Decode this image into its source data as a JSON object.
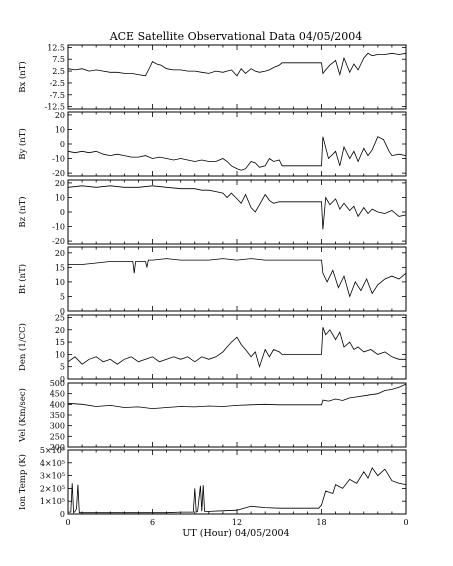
{
  "chart_data": {
    "type": "line",
    "title": "ACE Satellite Observational Data   04/05/2004",
    "xlabel": "UT (Hour)   04/05/2004",
    "x_range": [
      0,
      24
    ],
    "x_ticks": [
      "0",
      "6",
      "12",
      "18",
      "0"
    ],
    "panels": [
      {
        "id": "bx",
        "ylabel": "Bx (nT)",
        "ylim": [
          -13.5,
          13.5
        ],
        "yticks": [
          "12.5",
          "7.5",
          "2.5",
          "-2.5",
          "-7.5",
          "-12.5"
        ],
        "ytick_values": [
          12.5,
          7.5,
          2.5,
          -2.5,
          -7.5,
          -12.5
        ],
        "series": {
          "x": [
            0,
            0.5,
            1,
            1.5,
            2,
            2.5,
            3,
            3.5,
            4,
            4.5,
            5,
            5.5,
            5.8,
            6,
            6.3,
            6.6,
            7,
            7.5,
            8,
            8.5,
            9,
            9.5,
            10,
            10.5,
            11,
            11.3,
            11.6,
            12,
            12.3,
            12.6,
            13,
            13.3,
            13.6,
            14,
            14.3,
            14.6,
            15,
            15.2,
            16,
            17,
            17.8,
            18,
            18.1,
            18.3,
            18.6,
            19,
            19.3,
            19.6,
            20,
            20.3,
            20.6,
            21,
            21.3,
            21.6,
            22,
            22.5,
            23,
            23.5,
            24
          ],
          "y": [
            3.5,
            3,
            3.5,
            2.5,
            3,
            2.5,
            2,
            2,
            1.5,
            1.5,
            1,
            0.5,
            4,
            6.5,
            5.5,
            5,
            3.5,
            3,
            3,
            2.5,
            2.5,
            2,
            1.5,
            2.5,
            2,
            2.5,
            3,
            0.5,
            3.5,
            1.5,
            3.5,
            2.5,
            2,
            2.5,
            3,
            4,
            5,
            6,
            6,
            6,
            6,
            6,
            1.5,
            3,
            5,
            7,
            1,
            8,
            2,
            5.5,
            3,
            8,
            10,
            9,
            9.5,
            9.5,
            10,
            9.5,
            10
          ]
        }
      },
      {
        "id": "by",
        "ylabel": "By (nT)",
        "ylim": [
          -22,
          22
        ],
        "yticks": [
          "20",
          "10",
          "0",
          "-10",
          "-20"
        ],
        "ytick_values": [
          20,
          10,
          0,
          -10,
          -20
        ],
        "series": {
          "x": [
            0,
            0.5,
            1,
            1.5,
            2,
            2.5,
            3,
            3.5,
            4,
            4.5,
            5,
            5.5,
            6,
            6.5,
            7,
            7.5,
            8,
            8.5,
            9,
            9.5,
            10,
            10.5,
            11,
            11.3,
            11.6,
            12,
            12.3,
            12.6,
            13,
            13.3,
            13.6,
            14,
            14.3,
            14.6,
            15,
            15.2,
            16,
            17,
            17.8,
            18,
            18.1,
            18.5,
            19,
            19.3,
            19.6,
            20,
            20.3,
            20.6,
            21,
            21.3,
            21.6,
            22,
            22.4,
            22.8,
            23,
            23.5,
            24
          ],
          "y": [
            -5,
            -6,
            -5,
            -6,
            -5,
            -7,
            -8,
            -7,
            -8,
            -9,
            -9,
            -8,
            -10,
            -9,
            -10,
            -11,
            -10,
            -11,
            -12,
            -11,
            -12,
            -12,
            -10,
            -12,
            -15,
            -17,
            -18,
            -17,
            -12,
            -13,
            -16,
            -15,
            -10,
            -12,
            -11,
            -15,
            -15,
            -15,
            -15,
            -15,
            5,
            -10,
            -5,
            -15,
            -2,
            -10,
            -5,
            -12,
            -3,
            -8,
            -4,
            5,
            3,
            -5,
            -8,
            -7,
            -8
          ]
        }
      },
      {
        "id": "bz",
        "ylabel": "Bz (nT)",
        "ylim": [
          -22,
          22
        ],
        "yticks": [
          "20",
          "10",
          "0",
          "-10",
          "-20"
        ],
        "ytick_values": [
          20,
          10,
          0,
          -10,
          -20
        ],
        "series": {
          "x": [
            0,
            1,
            2,
            3,
            4,
            5,
            6,
            7,
            8,
            9,
            9.5,
            10,
            10.5,
            11,
            11.3,
            11.6,
            12,
            12.3,
            12.6,
            13,
            13.3,
            13.6,
            14,
            14.3,
            14.6,
            15,
            15.2,
            16,
            17,
            17.8,
            18,
            18.1,
            18.3,
            18.6,
            19,
            19.3,
            19.6,
            20,
            20.3,
            20.6,
            21,
            21.3,
            21.6,
            22,
            22.5,
            23,
            23.5,
            24
          ],
          "y": [
            17,
            18,
            17,
            18,
            17,
            17,
            18,
            17,
            16,
            16,
            15,
            15,
            14,
            13,
            10,
            13,
            9,
            6,
            12,
            3,
            0,
            5,
            12,
            8,
            6,
            7,
            7,
            7,
            7,
            7,
            7,
            -12,
            10,
            5,
            9,
            2,
            6,
            1,
            4,
            -3,
            3,
            -1,
            2,
            0,
            -1,
            1,
            -3,
            -2
          ]
        }
      },
      {
        "id": "bt",
        "ylabel": "Bt (nT)",
        "ylim": [
          0,
          22
        ],
        "yticks": [
          "20",
          "15",
          "10",
          "5",
          "0"
        ],
        "ytick_values": [
          20,
          15,
          10,
          5,
          0
        ],
        "series": {
          "x": [
            0,
            1,
            2,
            3,
            4,
            4.6,
            4.7,
            4.8,
            5,
            5.5,
            5.6,
            5.7,
            6,
            7,
            8,
            9,
            10,
            11,
            12,
            13,
            14,
            15,
            15.2,
            16,
            17,
            17.8,
            18,
            18.1,
            18.4,
            18.8,
            19.2,
            19.6,
            20,
            20.4,
            20.8,
            21.2,
            21.6,
            22,
            22.5,
            23,
            23.5,
            24
          ],
          "y": [
            16,
            16,
            16.5,
            17,
            17,
            17,
            13,
            17,
            17,
            17,
            15,
            17.5,
            17.5,
            18,
            17.5,
            17.5,
            17.5,
            18,
            17.5,
            18,
            17.5,
            17.5,
            17.5,
            17.5,
            17.5,
            17.5,
            17.5,
            13,
            10,
            14,
            8,
            12,
            5,
            10,
            7,
            11,
            6,
            9,
            11,
            12,
            11,
            13
          ]
        }
      },
      {
        "id": "den",
        "ylabel": "Den (1/CC)",
        "ylim": [
          0,
          26
        ],
        "yticks": [
          "25",
          "20",
          "15",
          "10",
          "5",
          "0"
        ],
        "ytick_values": [
          25,
          20,
          15,
          10,
          5,
          0
        ],
        "series": {
          "x": [
            0,
            0.5,
            1,
            1.5,
            2,
            2.5,
            3,
            3.5,
            4,
            4.5,
            5,
            5.5,
            6,
            6.5,
            7,
            7.5,
            8,
            8.5,
            9,
            9.5,
            10,
            10.5,
            11,
            11.3,
            11.6,
            12,
            12.3,
            12.6,
            13,
            13.3,
            13.6,
            14,
            14.3,
            14.6,
            15,
            15.2,
            16,
            17,
            17.8,
            18,
            18.1,
            18.3,
            18.6,
            19,
            19.3,
            19.6,
            20,
            20.3,
            20.6,
            21,
            21.5,
            22,
            22.5,
            23,
            23.5,
            24
          ],
          "y": [
            7,
            9,
            6,
            8,
            9,
            7,
            8,
            6,
            8,
            9,
            7,
            8,
            9,
            7,
            8,
            9,
            8,
            9,
            7,
            9,
            8,
            9,
            11,
            13,
            15,
            17,
            14,
            12,
            9,
            11,
            5,
            12,
            9,
            12,
            11,
            10,
            10,
            10,
            10,
            10,
            21,
            18,
            20,
            16,
            19,
            13,
            15,
            12,
            13,
            11,
            12,
            10,
            11,
            9,
            8,
            8
          ]
        }
      },
      {
        "id": "vel",
        "ylabel": "Vel (Km/sec)",
        "ylim": [
          200,
          500
        ],
        "yticks": [
          "500",
          "450",
          "400",
          "350",
          "300",
          "250",
          "200"
        ],
        "ytick_values": [
          500,
          450,
          400,
          350,
          300,
          250,
          200
        ],
        "series": {
          "x": [
            0,
            1,
            2,
            3,
            4,
            5,
            6,
            7,
            8,
            9,
            10,
            11,
            12,
            13,
            14,
            15,
            15.2,
            16,
            17,
            17.8,
            18,
            18.1,
            18.5,
            19,
            19.5,
            20,
            20.5,
            21,
            21.5,
            22,
            22.5,
            23,
            23.5,
            24
          ],
          "y": [
            405,
            400,
            390,
            395,
            385,
            388,
            380,
            385,
            390,
            388,
            392,
            390,
            395,
            398,
            400,
            398,
            398,
            398,
            398,
            398,
            398,
            420,
            415,
            425,
            418,
            430,
            435,
            440,
            445,
            450,
            465,
            470,
            480,
            495
          ]
        }
      },
      {
        "id": "temp",
        "ylabel": "Ion Temp (K)",
        "ylim": [
          0,
          500000
        ],
        "yticks": [
          "5×10⁵",
          "4×10⁵",
          "3×10⁵",
          "2×10⁵",
          "1×10⁵",
          "0"
        ],
        "ytick_values": [
          500000,
          400000,
          300000,
          200000,
          100000,
          0
        ],
        "series": {
          "x": [
            0,
            0.2,
            0.3,
            0.4,
            0.5,
            0.6,
            0.7,
            0.8,
            1,
            2,
            3,
            4,
            5,
            6,
            7,
            8,
            8.9,
            9,
            9.1,
            9.2,
            9.4,
            9.5,
            9.6,
            9.7,
            10,
            11,
            12,
            13,
            14,
            15,
            15.2,
            16,
            17,
            17.8,
            18,
            18.3,
            18.8,
            19,
            19.5,
            20,
            20.5,
            21,
            21.3,
            21.6,
            22,
            22.5,
            23,
            23.5,
            24
          ],
          "y": [
            15000,
            15000,
            240000,
            10000,
            20000,
            40000,
            230000,
            10000,
            10000,
            10000,
            10000,
            10000,
            10000,
            10000,
            10000,
            15000,
            15000,
            200000,
            15000,
            20000,
            220000,
            20000,
            225000,
            20000,
            20000,
            25000,
            30000,
            60000,
            50000,
            45000,
            45000,
            45000,
            45000,
            45000,
            70000,
            180000,
            160000,
            230000,
            200000,
            270000,
            240000,
            330000,
            280000,
            360000,
            300000,
            350000,
            260000,
            240000,
            230000
          ]
        }
      }
    ]
  }
}
